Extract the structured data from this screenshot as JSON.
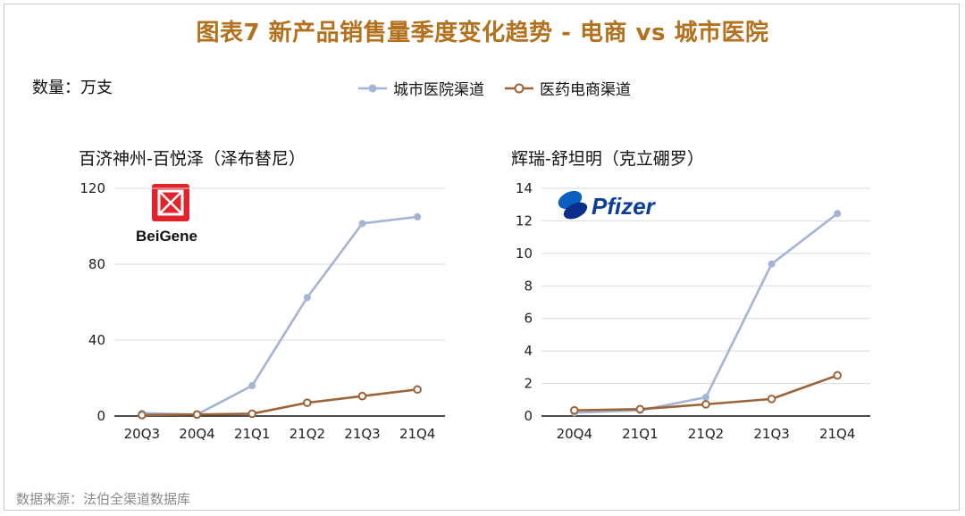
{
  "title": "图表7 新产品销售量季度变化趋势 - 电商 vs 城市医院",
  "unit_label": "数量：万支",
  "source": "数据来源：法伯全渠道数据库",
  "legend": [
    {
      "name": "城市医院渠道",
      "color": "#a3b4d4"
    },
    {
      "name": "医药电商渠道",
      "color": "#9a6438"
    }
  ],
  "logos": {
    "left": "BeiGene",
    "right": "Pfizer"
  },
  "colors": {
    "title": "#b3711d",
    "hospital": "#a3b4d4",
    "ecommerce": "#9a6438"
  },
  "chart_data": [
    {
      "type": "line",
      "title": "百济神州-百悦泽（泽布替尼）",
      "categories": [
        "20Q3",
        "20Q4",
        "21Q1",
        "21Q2",
        "21Q3",
        "21Q4"
      ],
      "ylim": [
        0,
        120
      ],
      "yticks": [
        0,
        40,
        80,
        120
      ],
      "grid": true,
      "series": [
        {
          "name": "城市医院渠道",
          "values": [
            1.5,
            0.8,
            16,
            62.5,
            101.5,
            105
          ]
        },
        {
          "name": "医药电商渠道",
          "values": [
            0.5,
            0.8,
            1.2,
            7,
            10.5,
            14
          ]
        }
      ]
    },
    {
      "type": "line",
      "title": "辉瑞-舒坦明（克立硼罗）",
      "categories": [
        "20Q4",
        "21Q1",
        "21Q2",
        "21Q3",
        "21Q4"
      ],
      "ylim": [
        0,
        14
      ],
      "yticks": [
        0,
        2,
        4,
        6,
        8,
        10,
        12,
        14
      ],
      "grid": true,
      "series": [
        {
          "name": "城市医院渠道",
          "values": [
            0.2,
            0.35,
            1.15,
            9.35,
            12.45
          ]
        },
        {
          "name": "医药电商渠道",
          "values": [
            0.35,
            0.42,
            0.72,
            1.05,
            2.5
          ]
        }
      ]
    }
  ]
}
